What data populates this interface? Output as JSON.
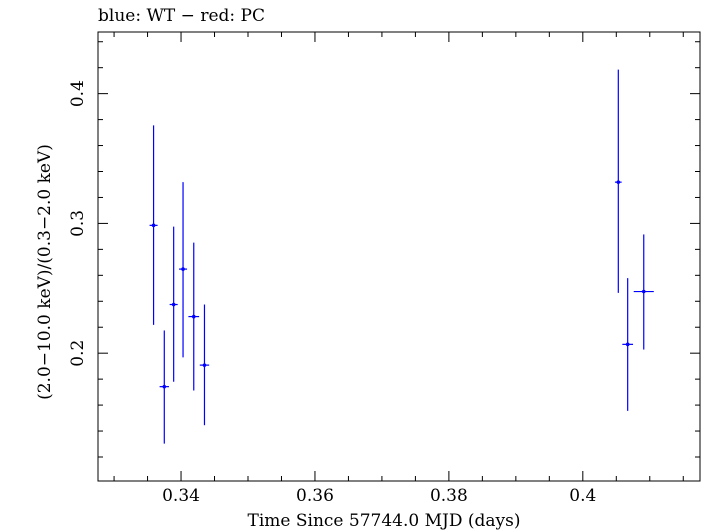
{
  "chart_data": {
    "type": "scatter",
    "title": "blue: WT − red: PC",
    "xlabel": "Time Since 57744.0 MJD (days)",
    "ylabel": "(2.0−10.0 keV)/(0.3−2.0 keV)",
    "xlim": [
      0.3276,
      0.4175
    ],
    "ylim": [
      0.1015,
      0.4475
    ],
    "x_ticks": [
      0.34,
      0.36,
      0.38,
      0.4
    ],
    "x_tick_labels": [
      "0.34",
      "0.36",
      "0.38",
      "0.4"
    ],
    "y_ticks": [
      0.2,
      0.3,
      0.4
    ],
    "y_tick_labels": [
      "0.2",
      "0.3",
      "0.4"
    ],
    "grid": false,
    "series": [
      {
        "name": "WT",
        "color": "#0000ff",
        "points": [
          {
            "x": 0.3359,
            "y": 0.2985,
            "xerr": 0.0006,
            "ylo": 0.2218,
            "yhi": 0.3755
          },
          {
            "x": 0.3375,
            "y": 0.1742,
            "xerr": 0.0007,
            "ylo": 0.1303,
            "yhi": 0.2175
          },
          {
            "x": 0.3389,
            "y": 0.2375,
            "xerr": 0.0006,
            "ylo": 0.178,
            "yhi": 0.2975
          },
          {
            "x": 0.3403,
            "y": 0.2648,
            "xerr": 0.0006,
            "ylo": 0.1968,
            "yhi": 0.3318
          },
          {
            "x": 0.3419,
            "y": 0.2282,
            "xerr": 0.0008,
            "ylo": 0.1712,
            "yhi": 0.2852
          },
          {
            "x": 0.3435,
            "y": 0.1908,
            "xerr": 0.0007,
            "ylo": 0.1445,
            "yhi": 0.2375
          },
          {
            "x": 0.4053,
            "y": 0.3318,
            "xerr": 0.0005,
            "ylo": 0.2465,
            "yhi": 0.4185
          },
          {
            "x": 0.4067,
            "y": 0.2068,
            "xerr": 0.0008,
            "ylo": 0.1555,
            "yhi": 0.2578
          },
          {
            "x": 0.4091,
            "y": 0.2475,
            "xerr": 0.0015,
            "ylo": 0.2028,
            "yhi": 0.2915
          }
        ]
      }
    ]
  }
}
